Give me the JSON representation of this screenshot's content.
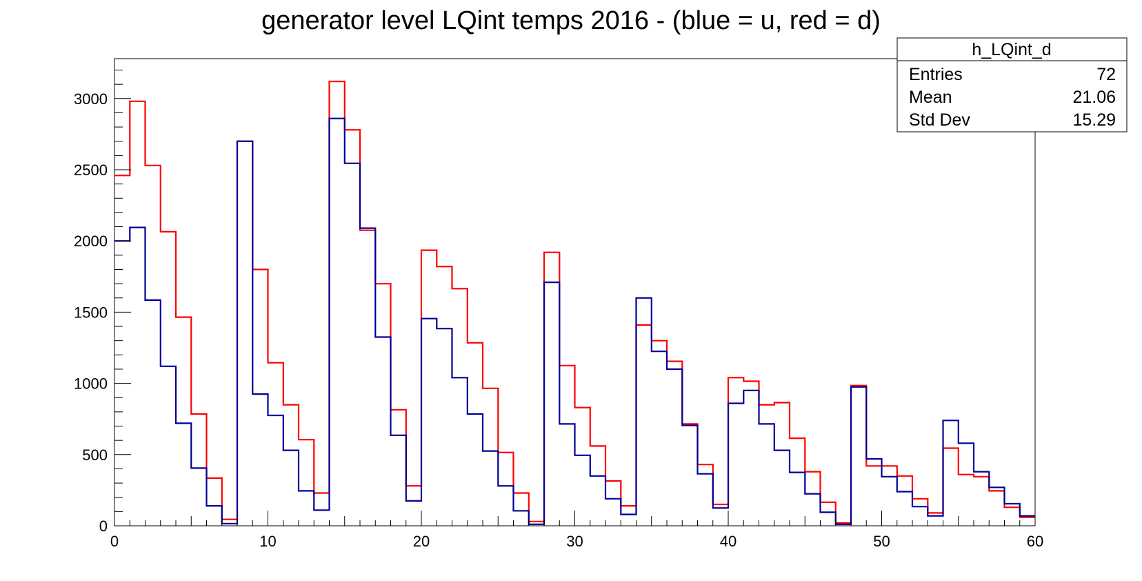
{
  "chart_data": {
    "type": "histogram",
    "title": "generator level LQint temps 2016 - (blue = u, red = d)",
    "xlabel": "",
    "ylabel": "",
    "xlim": [
      0,
      60
    ],
    "ylim": [
      0,
      3280
    ],
    "x_ticks": [
      0,
      10,
      20,
      30,
      40,
      50,
      60
    ],
    "y_ticks": [
      0,
      500,
      1000,
      1500,
      2000,
      2500,
      3000
    ],
    "bin_width": 1,
    "grid": false,
    "series": [
      {
        "color": "#ff0000",
        "values": [
          2460,
          2980,
          2530,
          2065,
          1465,
          785,
          335,
          45,
          2700,
          1800,
          1145,
          850,
          605,
          230,
          3120,
          2780,
          2075,
          1700,
          815,
          280,
          1935,
          1820,
          1665,
          1285,
          965,
          515,
          230,
          30,
          1920,
          1125,
          830,
          560,
          315,
          140,
          1410,
          1300,
          1155,
          715,
          430,
          150,
          1040,
          1015,
          850,
          865,
          615,
          380,
          165,
          20,
          985,
          420,
          420,
          350,
          190,
          90,
          545,
          360,
          345,
          245,
          130,
          60
        ]
      },
      {
        "color": "#000099",
        "values": [
          2000,
          2095,
          1585,
          1120,
          720,
          405,
          140,
          15,
          2700,
          925,
          775,
          530,
          245,
          110,
          2860,
          2545,
          2090,
          1325,
          635,
          175,
          1455,
          1385,
          1040,
          785,
          525,
          280,
          105,
          10,
          1710,
          715,
          495,
          350,
          190,
          80,
          1600,
          1225,
          1100,
          705,
          365,
          125,
          860,
          950,
          715,
          530,
          375,
          225,
          95,
          10,
          975,
          470,
          345,
          240,
          135,
          70,
          740,
          580,
          380,
          270,
          155,
          70
        ]
      }
    ]
  },
  "stats_box": {
    "name": "h_LQint_d",
    "rows": [
      {
        "label": "Entries",
        "value": "72"
      },
      {
        "label": "Mean",
        "value": "21.06"
      },
      {
        "label": "Std Dev",
        "value": "15.29"
      }
    ]
  }
}
